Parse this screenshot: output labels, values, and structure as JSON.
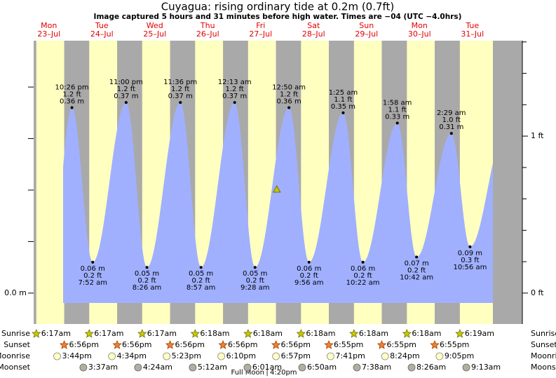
{
  "chart_data": {
    "type": "tide",
    "title": "Cuyagua: rising  ordinary tide at 0.2m (0.7ft)",
    "subtitle": "Image captured 5 hours and 31 minutes before high water. Times are −04 (UTC −4.0hrs)",
    "days": [
      "Mon",
      "Tue",
      "Wed",
      "Thu",
      "Fri",
      "Sat",
      "Sun",
      "Mon",
      "Tue"
    ],
    "dates": [
      "23–Jul",
      "24–Jul",
      "25–Jul",
      "26–Jul",
      "27–Jul",
      "28–Jul",
      "29–Jul",
      "30–Jul",
      "31–Jul"
    ],
    "highs": {
      "times": [
        "10:26 pm",
        "11:00 pm",
        "11:36 pm",
        null,
        "12:13 am",
        "12:50 am",
        "1:25 am",
        "1:58 am",
        "2:29 am"
      ],
      "values": [
        0.36,
        0.37,
        0.37,
        null,
        0.37,
        0.36,
        0.35,
        0.33,
        0.31
      ],
      "value_labels": [
        "0.36 m",
        "0.37 m",
        "0.37 m",
        null,
        "0.37 m",
        "0.36 m",
        "0.35 m",
        "0.33 m",
        "0.31 m"
      ],
      "value_labels_ft": [
        "1.2 ft",
        "1.2 ft",
        "1.2 ft",
        null,
        "1.2 ft",
        "1.2 ft",
        "1.1 ft",
        "1.1 ft",
        "1.0 ft"
      ]
    },
    "lows": {
      "times": [
        null,
        "7:52 am",
        "8:26 am",
        "8:57 am",
        "9:28 am",
        "9:56 am",
        "10:22 am",
        "10:42 am",
        "10:56 am"
      ],
      "values": [
        null,
        0.06,
        0.05,
        0.05,
        0.05,
        0.06,
        0.06,
        0.07,
        0.09
      ],
      "value_labels": [
        null,
        "0.06 m",
        "0.05 m",
        "0.05 m",
        "0.05 m",
        "0.06 m",
        "0.06 m",
        "0.07 m",
        "0.09 m"
      ],
      "value_labels_ft": [
        null,
        "0.2 ft",
        "0.2 ft",
        "0.2 ft",
        "0.2 ft",
        "0.2 ft",
        "0.2 ft",
        "0.2 ft",
        "0.3 ft"
      ]
    },
    "current_level": 0.2,
    "ylim": [
      -0.06,
      0.49
    ],
    "yticks": [
      {
        "value": 0,
        "label": "0.0 m"
      }
    ],
    "yticks_minor": [
      0.1,
      0.2,
      0.3,
      0.4
    ],
    "y2lim": [
      -0.197,
      1.608
    ],
    "y2ticks": [
      {
        "value": 0,
        "label": "0 ft"
      },
      {
        "value": 1,
        "label": "1 ft"
      }
    ],
    "y2ticks_minor": [
      0.2,
      0.4,
      0.6,
      0.8,
      1.2,
      1.4,
      1.6
    ],
    "colors": {
      "day": "#ffffc0",
      "night": "#a9a9a9",
      "water": "#a0b0ff"
    }
  },
  "almanac": {
    "labels": {
      "sunrise": "Sunrise",
      "sunset": "Sunset",
      "moonrise": "Moonrise",
      "moonset": "Moonset"
    },
    "sunrise": [
      "6:17am",
      "6:17am",
      "6:17am",
      "6:18am",
      "6:18am",
      "6:18am",
      "6:18am",
      "6:18am",
      "6:19am"
    ],
    "sunset": [
      "6:56pm",
      "6:56pm",
      "6:56pm",
      "6:56pm",
      "6:56pm",
      "6:55pm",
      "6:55pm",
      "6:55pm",
      null
    ],
    "moonrise": [
      "3:44pm",
      "4:34pm",
      "5:23pm",
      "6:10pm",
      "6:57pm",
      "7:41pm",
      "8:24pm",
      "9:05pm",
      null
    ],
    "moonset": [
      null,
      "3:37am",
      "4:24am",
      "5:12am",
      "6:01am",
      "6:50am",
      "7:38am",
      "8:26am",
      "9:13am"
    ]
  },
  "moon_phase": {
    "name": "Full Moon",
    "time": "4:20pm"
  }
}
